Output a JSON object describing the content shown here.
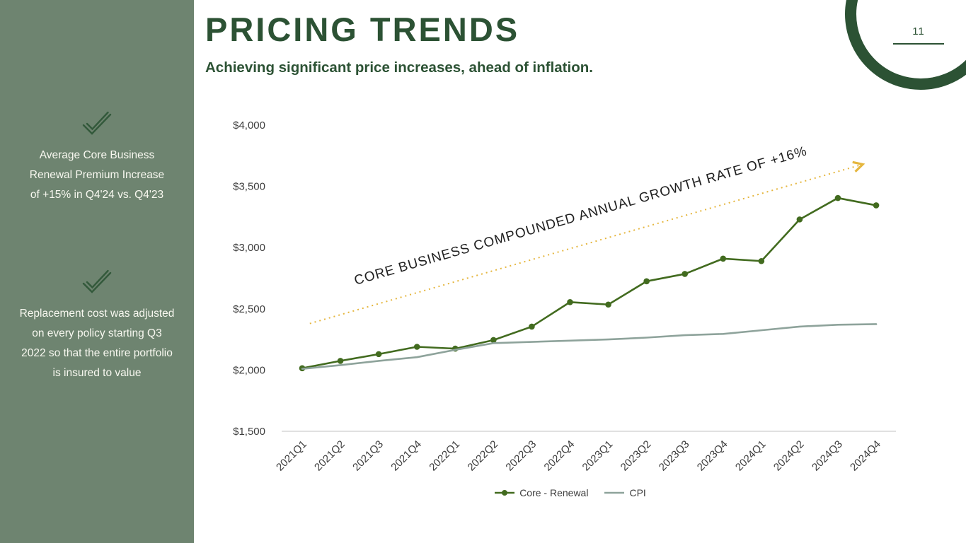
{
  "page_number": "11",
  "header": {
    "title": "PRICING TRENDS",
    "subtitle": "Achieving significant price increases, ahead of inflation."
  },
  "sidebar": {
    "notes": [
      {
        "icon": "checkmark-icon",
        "lines": [
          "Average Core Business",
          "Renewal Premium Increase",
          "of +15% in Q4'24 vs. Q4'23"
        ]
      },
      {
        "icon": "checkmark-icon",
        "lines": [
          "Replacement cost was adjusted",
          "on every policy starting Q3",
          "2022 so that the entire portfolio",
          "is insured to value"
        ]
      }
    ]
  },
  "chart_data": {
    "type": "line",
    "title": "",
    "categories": [
      "2021Q1",
      "2021Q2",
      "2021Q3",
      "2021Q4",
      "2022Q1",
      "2022Q2",
      "2022Q3",
      "2022Q4",
      "2023Q1",
      "2023Q2",
      "2023Q3",
      "2023Q4",
      "2024Q1",
      "2024Q2",
      "2024Q3",
      "2024Q4"
    ],
    "series": [
      {
        "name": "Core - Renewal",
        "color": "#426b1f",
        "marker": true,
        "values": [
          2015,
          2075,
          2130,
          2190,
          2175,
          2245,
          2355,
          2555,
          2535,
          2725,
          2785,
          2910,
          2890,
          3230,
          3405,
          3345
        ]
      },
      {
        "name": "CPI",
        "color": "#8ea39b",
        "marker": false,
        "values": [
          2010,
          2040,
          2075,
          2105,
          2165,
          2220,
          2230,
          2240,
          2250,
          2265,
          2285,
          2295,
          2325,
          2355,
          2370,
          2375
        ]
      }
    ],
    "ylim": [
      1500,
      4000
    ],
    "yticks": [
      {
        "value": 1500,
        "label": "$1,500"
      },
      {
        "value": 2000,
        "label": "$2,000"
      },
      {
        "value": 2500,
        "label": "$2,500"
      },
      {
        "value": 3000,
        "label": "$3,000"
      },
      {
        "value": 3500,
        "label": "$3,500"
      },
      {
        "value": 4000,
        "label": "$4,000"
      }
    ],
    "grid": false,
    "legend_position": "bottom",
    "annotation": {
      "text": "CORE BUSINESS COMPOUNDED ANNUAL GROWTH RATE OF +16%",
      "angle_deg": -16.1,
      "arrow_from": [
        0.2,
        2380
      ],
      "arrow_to": [
        14.65,
        3680
      ],
      "label_pos": [
        1.4,
        2695
      ],
      "arrow_color": "#e5b63e",
      "text_color": "#1f1f1f"
    }
  },
  "colors": {
    "sidebar_bg": "#6e8470",
    "accent_green": "#2c5234",
    "check_green": "#33593b",
    "sidebar_text": "#f8f8f0"
  }
}
